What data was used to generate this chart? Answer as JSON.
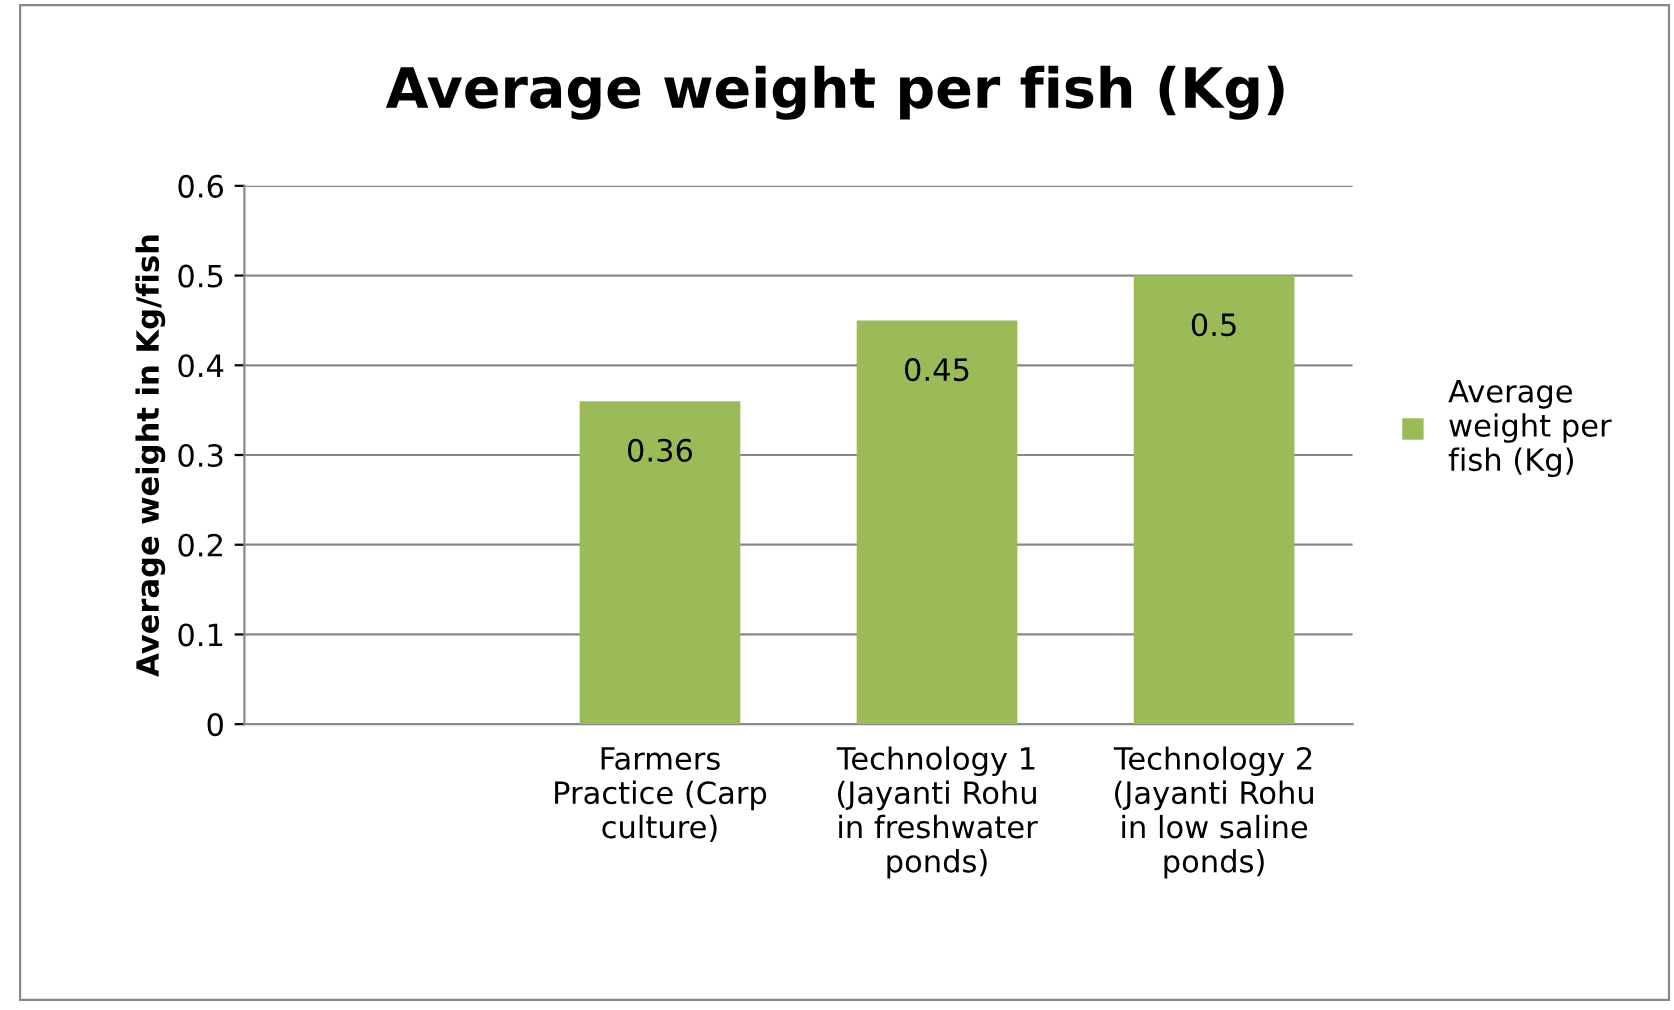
{
  "chart_data": {
    "type": "bar",
    "title": "Average weight per fish (Kg)",
    "ylabel": "Average weight in Kg/fish",
    "categories": [
      null,
      "Farmers Practice (Carp culture)",
      "Technology 1 (Jayanti Rohu in freshwater ponds)",
      "Technology 2 (Jayanti Rohu in low saline ponds)"
    ],
    "series": [
      {
        "name": "Average weight per fish (Kg)",
        "color": "#9bbb59",
        "values": [
          null,
          0.36,
          0.45,
          0.5
        ]
      }
    ],
    "ylim": [
      0,
      0.6
    ],
    "yticks": [
      {
        "value": 0,
        "label": "0"
      },
      0.1,
      0.2,
      0.3,
      0.4,
      0.5,
      0.6
    ],
    "grid": "y",
    "legend": "right",
    "data_labels": true
  }
}
